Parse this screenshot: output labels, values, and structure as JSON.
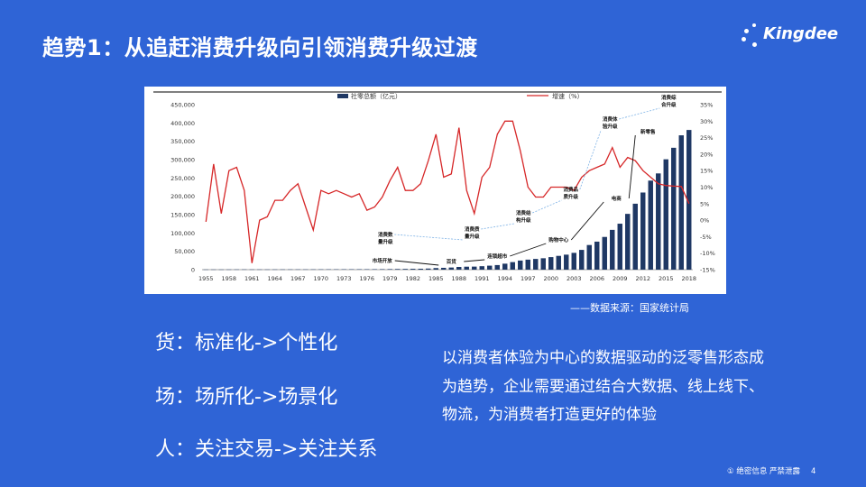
{
  "slide": {
    "title": "趋势1：从追赶消费升级向引领消费升级过渡",
    "source": "——数据来源：国家统计局",
    "left_points": [
      "货：标准化->个性化",
      "场：场所化->场景化",
      "人：关注交易->关注关系"
    ],
    "right_paragraph": "以消费者体验为中心的数据驱动的泛零售形态成为趋势，企业需要通过结合大数据、线上线下、物流，为消费者打造更好的体验",
    "footer_confidential": "① 绝密信息 严禁泄露",
    "page_number": "4"
  },
  "brand": {
    "logo_text": "Kingdee",
    "color": "#ffffff"
  },
  "colors": {
    "background": "#2f64d6",
    "bar": "#1f3864",
    "line": "#d62728"
  },
  "chart_data": {
    "type": "bar",
    "legend": [
      "社零总额（亿元）",
      "增速（%）"
    ],
    "legend_placement": "top",
    "x": [
      1955,
      1956,
      1957,
      1958,
      1959,
      1960,
      1961,
      1962,
      1963,
      1964,
      1965,
      1966,
      1967,
      1968,
      1969,
      1970,
      1971,
      1972,
      1973,
      1974,
      1975,
      1976,
      1977,
      1978,
      1979,
      1980,
      1981,
      1982,
      1983,
      1984,
      1985,
      1986,
      1987,
      1988,
      1989,
      1990,
      1991,
      1992,
      1993,
      1994,
      1995,
      1996,
      1997,
      1998,
      1999,
      2000,
      2001,
      2002,
      2003,
      2004,
      2005,
      2006,
      2007,
      2008,
      2009,
      2010,
      2011,
      2012,
      2013,
      2014,
      2015,
      2016,
      2017,
      2018
    ],
    "x_tick_labels": [
      "1955",
      "1958",
      "1961",
      "1964",
      "1967",
      "1970",
      "1973",
      "1976",
      "1979",
      "1982",
      "1985",
      "1988",
      "1991",
      "1994",
      "1997",
      "2000",
      "2003",
      "2006",
      "2009",
      "2012",
      "2015",
      "2018"
    ],
    "y_left_ticks": [
      "450,000",
      "400,000",
      "350,000",
      "300,000",
      "250,000",
      "200,000",
      "150,000",
      "100,000",
      "50,000",
      "0"
    ],
    "y_right_ticks": [
      "35%",
      "30%",
      "25%",
      "20%",
      "15%",
      "10%",
      "5%",
      "0%",
      "-5%",
      "-10%",
      "-15%"
    ],
    "ylim_left": [
      0,
      450000
    ],
    "ylim_right": [
      -15,
      35
    ],
    "series": [
      {
        "name": "社零总额（亿元）",
        "type": "bar",
        "values": [
          460,
          490,
          480,
          550,
          640,
          700,
          600,
          600,
          600,
          640,
          670,
          730,
          770,
          740,
          800,
          860,
          930,
          960,
          1050,
          1080,
          1160,
          1180,
          1240,
          1350,
          1540,
          1800,
          2000,
          2280,
          2500,
          3000,
          4300,
          5000,
          5800,
          7400,
          8100,
          8300,
          9400,
          10900,
          12500,
          16300,
          20600,
          24800,
          27300,
          29200,
          31100,
          34200,
          37600,
          40900,
          45800,
          53900,
          67200,
          76400,
          89200,
          108500,
          125300,
          152100,
          179800,
          210300,
          242800,
          262400,
          300900,
          332300,
          366300,
          380900
        ]
      },
      {
        "name": "增速（%）",
        "type": "line",
        "values": [
          -0.5,
          17,
          2,
          15,
          16,
          9,
          -13,
          0,
          1,
          6,
          6,
          9,
          11,
          4,
          -3,
          9,
          8,
          9,
          8,
          7,
          8,
          3,
          4,
          7,
          12,
          16,
          9,
          9,
          11,
          18,
          26,
          13,
          14,
          28,
          9,
          2,
          13,
          16,
          26,
          30,
          30,
          21,
          10,
          7,
          7,
          10,
          10,
          10,
          9,
          13,
          15,
          16,
          17,
          22,
          16,
          19,
          18,
          15,
          13,
          11,
          10.5,
          10.3,
          10.2,
          5
        ]
      }
    ],
    "annotations": [
      "市场开放",
      "消费数量升级",
      "百货",
      "消费质量升级",
      "连锁超市",
      "消费结构升级",
      "购物中心",
      "消费品质升级",
      "电商",
      "消费体验升级",
      "新零售",
      "消费综合升级"
    ]
  }
}
